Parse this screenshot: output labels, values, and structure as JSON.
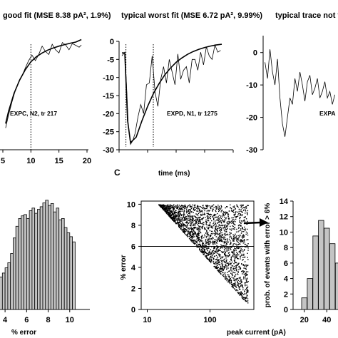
{
  "chart_data": [
    {
      "type": "line",
      "title": "good fit (MSE 8.38 pA², 1.9%)",
      "annotation": "EXPC, N2, tr 217",
      "xlim": [
        5,
        20
      ],
      "ylim": [
        -30,
        0
      ],
      "x_ticks": [
        "5",
        "10",
        "15",
        "20"
      ],
      "series": [
        {
          "x": [
            5.5,
            6,
            7,
            8,
            9,
            10,
            11,
            12,
            13,
            14,
            15,
            16,
            17,
            18,
            19
          ],
          "y": [
            -22.8,
            -19.5,
            -14.5,
            -10.8,
            -8,
            -5.8,
            -4.4,
            -3.4,
            -2.6,
            -2,
            -1.5,
            -1.1,
            -0.7,
            -0.4,
            0.3
          ]
        },
        {
          "x": [
            5.5,
            6,
            6.6,
            7.2,
            7.8,
            8.4,
            9,
            9.6,
            10.2,
            10.8,
            11.4,
            12,
            12.6,
            13.2,
            13.8,
            14.4,
            15,
            15.6,
            16.2,
            16.8,
            17.4,
            18,
            18.6,
            19
          ],
          "y": [
            -24,
            -20.5,
            -17,
            -13.8,
            -11.5,
            -9.8,
            -7.5,
            -5.5,
            -4,
            -5.5,
            -3.8,
            -1.5,
            -3,
            -3.8,
            -1,
            -2.5,
            -3.4,
            -0.5,
            -1.2,
            -2.5,
            -0.8,
            -1.3,
            -1.8,
            -1.2
          ]
        }
      ],
      "markers": [
        {
          "x": 10,
          "style": "dotted-vertical"
        }
      ]
    },
    {
      "type": "line",
      "title": "typical worst fit (MSE 6.72 pA², 9.99%)",
      "annotation": "EXPD, N1, tr 1275",
      "xlabel": "time (ms)",
      "xlim": [
        0,
        20
      ],
      "ylim": [
        -30,
        0
      ],
      "x_ticks": [
        "0",
        "5",
        "10",
        "15",
        "20"
      ],
      "y_ticks": [
        "0",
        "-5",
        "-10",
        "-15",
        "-20",
        "-25",
        "-30"
      ],
      "series": [
        {
          "x": [
            0.5,
            1,
            1.5,
            2,
            3,
            4,
            5,
            6,
            7,
            8,
            9,
            10,
            11,
            12,
            13,
            14,
            15,
            16,
            17,
            18
          ],
          "y": [
            -3.2,
            -3.2,
            -22,
            -28,
            -26.5,
            -22,
            -18,
            -14.5,
            -11.7,
            -9.3,
            -7.4,
            -5.8,
            -4.6,
            -3.6,
            -2.8,
            -2.2,
            -1.7,
            -1.3,
            -1,
            -0.8
          ]
        },
        {
          "x": [
            0.5,
            1,
            1.3,
            1.6,
            2,
            2.4,
            2.8,
            3.3,
            3.8,
            4.3,
            4.8,
            5.3,
            5.8,
            6.3,
            6.8,
            7.3,
            7.8,
            8.3,
            8.8,
            9.3,
            9.8,
            10.3,
            10.8,
            11.3,
            11.8,
            12.3,
            12.8,
            13.3,
            13.8,
            14.3,
            14.8,
            15.3,
            15.8,
            16.3,
            16.8,
            17.3,
            17.8
          ],
          "y": [
            -4,
            -3,
            -12,
            -23,
            -28.5,
            -27.5,
            -25.5,
            -21,
            -17.5,
            -20,
            -12,
            -11.5,
            -4,
            -14,
            -18,
            -10.5,
            -7,
            -11.5,
            -5,
            -8.5,
            -12,
            -3.5,
            -10.5,
            -8,
            -7,
            -11.5,
            -5,
            -5,
            -8,
            -3,
            -6.5,
            -1.5,
            -4,
            -5,
            -1,
            -3,
            -2.5
          ]
        }
      ],
      "markers": [
        {
          "x": 1.2,
          "style": "dotted-vertical"
        },
        {
          "x": 6,
          "style": "dotted-vertical"
        }
      ]
    },
    {
      "type": "line",
      "title": "typical trace not f",
      "annotation": "EXPA",
      "xlim": [
        0,
        12
      ],
      "ylim": [
        -30,
        5
      ],
      "y_ticks": [
        "0",
        "-10",
        "-20",
        "-30"
      ],
      "series": [
        {
          "x": [
            0.3,
            0.7,
            1.1,
            1.5,
            1.9,
            2.3,
            2.7,
            3.1,
            3.5,
            3.9,
            4.3,
            4.7,
            5.1,
            5.5,
            5.9,
            6.3,
            6.7,
            7.1,
            7.5,
            7.9,
            8.3,
            8.7,
            9.1,
            9.5,
            9.9,
            10.3,
            10.7,
            11.1,
            11.5
          ],
          "y": [
            -3,
            -8,
            1,
            -6,
            -10,
            -2,
            -14,
            -22,
            -26,
            -20,
            -14,
            -16,
            -8,
            -12,
            -6,
            -10,
            -15,
            -9,
            -7,
            -13,
            -11,
            -8,
            -14,
            -12,
            -9,
            -14,
            -12,
            -16,
            -13
          ]
        }
      ]
    },
    {
      "type": "bar",
      "xlabel": "% error",
      "xlim": [
        3,
        12
      ],
      "x_ticks": [
        "4",
        "6",
        "8",
        "10"
      ],
      "categories": [
        "3.0",
        "3.25",
        "3.5",
        "3.75",
        "4.0",
        "4.25",
        "4.5",
        "4.75",
        "5.0",
        "5.25",
        "5.5",
        "5.75",
        "6.0",
        "6.25",
        "6.5",
        "6.75",
        "7.0",
        "7.25",
        "7.5",
        "7.75",
        "8.0",
        "8.25",
        "8.5",
        "8.75",
        "9.0",
        "9.25",
        "9.5",
        "9.75",
        "10.0",
        "10.25"
      ],
      "values": [
        30,
        40,
        50,
        56,
        64,
        72,
        86,
        110,
        128,
        140,
        144,
        146,
        140,
        152,
        156,
        148,
        154,
        158,
        164,
        168,
        160,
        163,
        150,
        156,
        138,
        140,
        126,
        118,
        112,
        104
      ]
    },
    {
      "type": "scatter",
      "panel_label": "C",
      "xlabel": "peak current (pA)",
      "ylabel": "% error",
      "x_scale": "log",
      "xlim": [
        8,
        500
      ],
      "ylim": [
        0,
        10.3
      ],
      "x_ticks": [
        "10",
        "100"
      ],
      "y_ticks": [
        "0",
        "2",
        "4",
        "6",
        "8",
        "10"
      ],
      "threshold": 6,
      "points": "dense cloud: upper bound 10% at 15–400 pA, lower edge falls from ~10% at 15 pA to ~0.5% at 400 pA"
    },
    {
      "type": "bar",
      "xlabel": "peak current (pA)",
      "ylabel": "prob. of events with error > 6%",
      "xlim": [
        10,
        50
      ],
      "ylim": [
        0,
        14
      ],
      "x_ticks": [
        "20",
        "40"
      ],
      "y_ticks": [
        "0",
        "2",
        "4",
        "6",
        "8",
        "10",
        "12",
        "14"
      ],
      "categories": [
        "20",
        "25",
        "30",
        "35",
        "40",
        "45",
        "50"
      ],
      "values": [
        1.5,
        4,
        9.5,
        11.5,
        10.5,
        8.5,
        6
      ]
    }
  ]
}
